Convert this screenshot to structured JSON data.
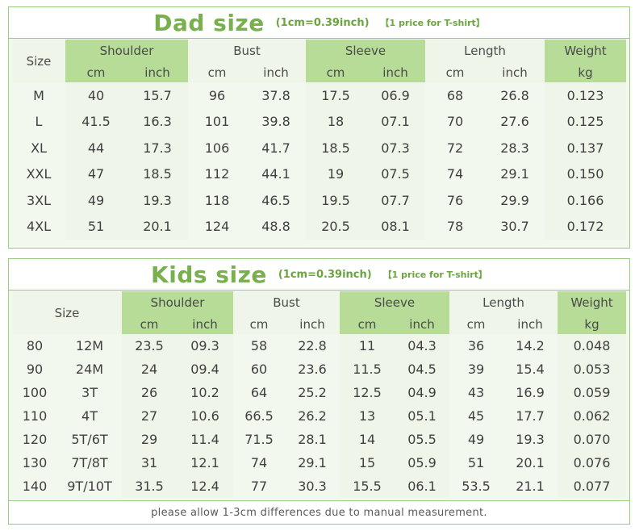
{
  "dad": {
    "title": "Dad size",
    "conversion": "(1cm=0.39inch)",
    "price_note": "【1 price for T-shirt】",
    "size_header": "Size",
    "groups": [
      "Shoulder",
      "Bust",
      "Sleeve",
      "Length",
      "Weight"
    ],
    "units": [
      "cm",
      "inch",
      "cm",
      "inch",
      "cm",
      "inch",
      "cm",
      "inch",
      "kg"
    ],
    "rows": [
      [
        "M",
        "40",
        "15.7",
        "96",
        "37.8",
        "17.5",
        "06.9",
        "68",
        "26.8",
        "0.123"
      ],
      [
        "L",
        "41.5",
        "16.3",
        "101",
        "39.8",
        "18",
        "07.1",
        "70",
        "27.6",
        "0.125"
      ],
      [
        "XL",
        "44",
        "17.3",
        "106",
        "41.7",
        "18.5",
        "07.3",
        "72",
        "28.3",
        "0.137"
      ],
      [
        "XXL",
        "47",
        "18.5",
        "112",
        "44.1",
        "19",
        "07.5",
        "74",
        "29.1",
        "0.150"
      ],
      [
        "3XL",
        "49",
        "19.3",
        "118",
        "46.5",
        "19.5",
        "07.7",
        "76",
        "29.9",
        "0.166"
      ],
      [
        "4XL",
        "51",
        "20.1",
        "124",
        "48.8",
        "20.5",
        "08.1",
        "78",
        "30.7",
        "0.172"
      ]
    ]
  },
  "kids": {
    "title": "Kids size",
    "conversion": "(1cm=0.39inch)",
    "price_note": "【1 price for T-shirt】",
    "size_header": "Size",
    "groups": [
      "Shoulder",
      "Bust",
      "Sleeve",
      "Length",
      "Weight"
    ],
    "units": [
      "cm",
      "inch",
      "cm",
      "inch",
      "cm",
      "inch",
      "cm",
      "inch",
      "kg"
    ],
    "rows": [
      [
        "80",
        "12M",
        "23.5",
        "09.3",
        "58",
        "22.8",
        "11",
        "04.3",
        "36",
        "14.2",
        "0.048"
      ],
      [
        "90",
        "24M",
        "24",
        "09.4",
        "60",
        "23.6",
        "11.5",
        "04.5",
        "39",
        "15.4",
        "0.053"
      ],
      [
        "100",
        "3T",
        "26",
        "10.2",
        "64",
        "25.2",
        "12.5",
        "04.9",
        "43",
        "16.9",
        "0.059"
      ],
      [
        "110",
        "4T",
        "27",
        "10.6",
        "66.5",
        "26.2",
        "13",
        "05.1",
        "45",
        "17.7",
        "0.062"
      ],
      [
        "120",
        "5T/6T",
        "29",
        "11.4",
        "71.5",
        "28.1",
        "14",
        "05.5",
        "49",
        "19.3",
        "0.070"
      ],
      [
        "130",
        "7T/8T",
        "31",
        "12.1",
        "74",
        "29.1",
        "15",
        "05.9",
        "51",
        "20.1",
        "0.076"
      ],
      [
        "140",
        "9T/10T",
        "31.5",
        "12.4",
        "77",
        "30.3",
        "15.5",
        "06.1",
        "53.5",
        "21.1",
        "0.077"
      ]
    ],
    "footer": "please allow 1-3cm differences due to manual measurement."
  },
  "colors": {
    "title_green": "#79b04e",
    "band_green": "#b7dc98",
    "band_light": "#eff6e9",
    "border_green": "#9ccb84"
  }
}
